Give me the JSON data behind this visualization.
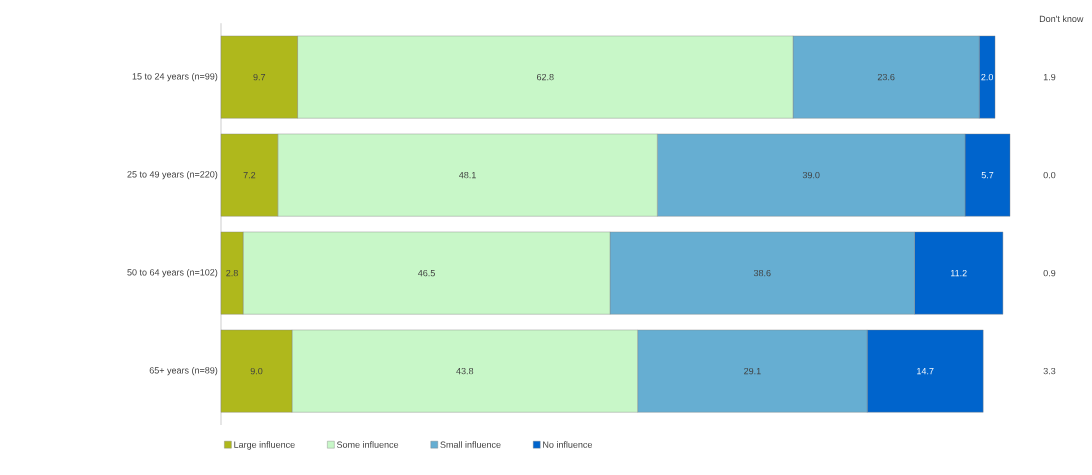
{
  "chart_data": {
    "type": "bar",
    "orientation": "horizontal",
    "stacked": true,
    "legend": "bottom",
    "tick_labels": "y",
    "categories": [
      "15 to 24 years (n=99)",
      "25 to 49 years (n=220)",
      "50 to 64 years (n=102)",
      "65+ years (n=89)"
    ],
    "series": [
      {
        "name": "Large influence",
        "color": "#afb81c",
        "values": [
          9.7,
          7.2,
          2.8,
          9.0
        ],
        "value_labels": [
          "9.7",
          "7.2",
          "2.8",
          "9.0"
        ]
      },
      {
        "name": "Some influence",
        "color": "#c8f7c8",
        "values": [
          62.8,
          48.1,
          46.5,
          43.8
        ],
        "value_labels": [
          "62.8",
          "48.1",
          "46.5",
          "43.8"
        ]
      },
      {
        "name": "Small influence",
        "color": "#66aed2",
        "values": [
          23.6,
          39.0,
          38.6,
          29.1
        ],
        "value_labels": [
          "23.6",
          "39.0",
          "38.6",
          "29.1"
        ]
      },
      {
        "name": "No influence",
        "color": "#0064cc",
        "values": [
          2.0,
          5.7,
          11.2,
          14.7
        ],
        "value_labels": [
          "2.0",
          "5.7",
          "11.2",
          "14.7"
        ]
      }
    ],
    "annotations": [
      "Don't know",
      "1.9",
      "0.0",
      "0.9",
      "3.3"
    ]
  }
}
